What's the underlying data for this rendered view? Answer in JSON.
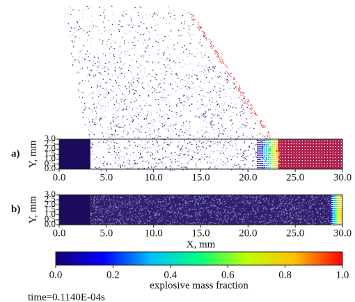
{
  "chart_data": [
    {
      "type": "scatter",
      "label": "a)",
      "ylabel": "Y, mm",
      "xlim": [
        0,
        30
      ],
      "ylim": [
        0,
        3
      ],
      "xticks": [
        {
          "value": 0,
          "label": "0.0"
        },
        {
          "value": 5,
          "label": "5.0"
        },
        {
          "value": 10,
          "label": "10.0"
        },
        {
          "value": 15,
          "label": "15.0"
        },
        {
          "value": 20,
          "label": "20.0"
        },
        {
          "value": 25,
          "label": "25.0"
        },
        {
          "value": 30,
          "label": "30.0"
        }
      ],
      "yticks": [
        {
          "value": 0,
          "label": "0.0"
        },
        0.5,
        {
          "value": 1,
          "label": "1.0"
        },
        1.5,
        {
          "value": 2,
          "label": "2.0"
        },
        2.5,
        {
          "value": 3,
          "label": "3.0"
        }
      ]
    },
    {
      "type": "scatter",
      "label": "b)",
      "ylabel": "Y, mm",
      "xlabel": "X, mm",
      "xlim": [
        0,
        30
      ],
      "ylim": [
        0,
        3
      ],
      "xticks": [
        {
          "value": 0,
          "label": "0.0"
        },
        {
          "value": 5,
          "label": "5.0"
        },
        {
          "value": 10,
          "label": "10.0"
        },
        {
          "value": 15,
          "label": "15.0"
        },
        {
          "value": 20,
          "label": "20.0"
        },
        {
          "value": 25,
          "label": "25.0"
        },
        {
          "value": 30,
          "label": "30.0"
        }
      ],
      "yticks": [
        {
          "value": 0,
          "label": "0.0"
        },
        0.5,
        {
          "value": 1,
          "label": "1.0"
        },
        1.5,
        {
          "value": 2,
          "label": "2.0"
        },
        2.5,
        {
          "value": 3,
          "label": "3.0"
        }
      ]
    },
    {
      "type": "colorbar",
      "label": "explosive mass fraction",
      "lim": [
        0,
        1
      ],
      "ticks": [
        {
          "value": 0,
          "label": "0.0"
        },
        0.2,
        0.4,
        0.6,
        0.8,
        {
          "value": 1,
          "label": "1.0"
        }
      ],
      "colors": [
        "#1a0070",
        "#0000ff",
        "#00c0ff",
        "#00ff80",
        "#c0ff00",
        "#ffc000",
        "#ff0000"
      ]
    }
  ],
  "annotations": [
    "time=0.1140E-04s"
  ]
}
